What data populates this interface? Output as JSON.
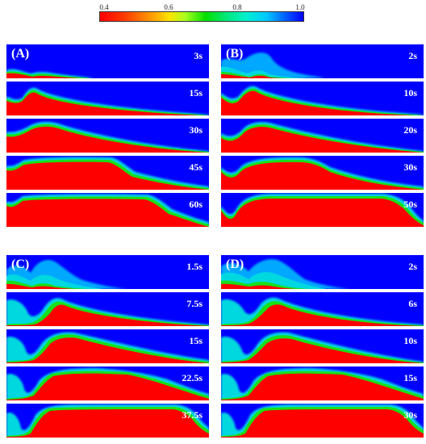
{
  "colorbar": {
    "ticks": [
      "0.4",
      "0.6",
      "0.8",
      "1.0"
    ],
    "values": [
      0.4,
      0.6,
      0.8,
      1.0
    ]
  },
  "panels": [
    {
      "label": "(A)",
      "times": [
        "3s",
        "15s",
        "30s",
        "45s",
        "60s"
      ]
    },
    {
      "label": "(B)",
      "times": [
        "2s",
        "10s",
        "20s",
        "30s",
        "50s"
      ]
    },
    {
      "label": "(C)",
      "times": [
        "1.5s",
        "7.5s",
        "15s",
        "22.5s",
        "37.5s"
      ]
    },
    {
      "label": "(D)",
      "times": [
        "2s",
        "6s",
        "10s",
        "15s",
        "30s"
      ]
    }
  ]
}
